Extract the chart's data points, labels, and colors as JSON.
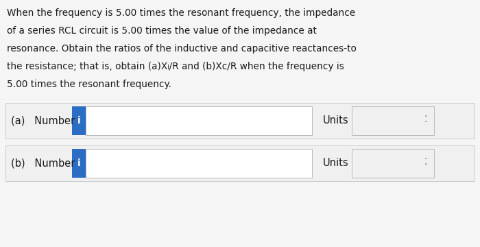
{
  "background_color": "#e8e8e8",
  "page_bg": "#f5f5f5",
  "para_lines": [
    "When the frequency is 5.00 times the resonant frequency, the impedance",
    "of a series RCL circuit is 5.00 times the value of the impedance at",
    "resonance. Obtain the ratios of the inductive and capacitive reactances‐to",
    "the resistance; that is, obtain (a)Xₗ/R and (b)Xᴄ/R when the frequency is",
    "5.00 times the resonant frequency."
  ],
  "row_a_label": "(a)   Number",
  "row_b_label": "(b)   Number",
  "units_label": "Units",
  "icon_char": "i",
  "icon_bg": "#2b6cc4",
  "icon_fg": "#ffffff",
  "input_box_bg": "#ffffff",
  "input_box_border": "#bbbbbb",
  "units_box_bg": "#f0f0f0",
  "units_box_border": "#bbbbbb",
  "row_bg": "#f0f0f0",
  "row_border": "#cccccc",
  "gap_color": "#e0e0e0",
  "arrow_color": "#555555",
  "font_color": "#1a1a1a",
  "font_size_para": 9.8,
  "font_size_label": 10.5,
  "font_size_icon": 10,
  "fig_w": 7.0,
  "fig_h": 3.6,
  "dpi": 100
}
